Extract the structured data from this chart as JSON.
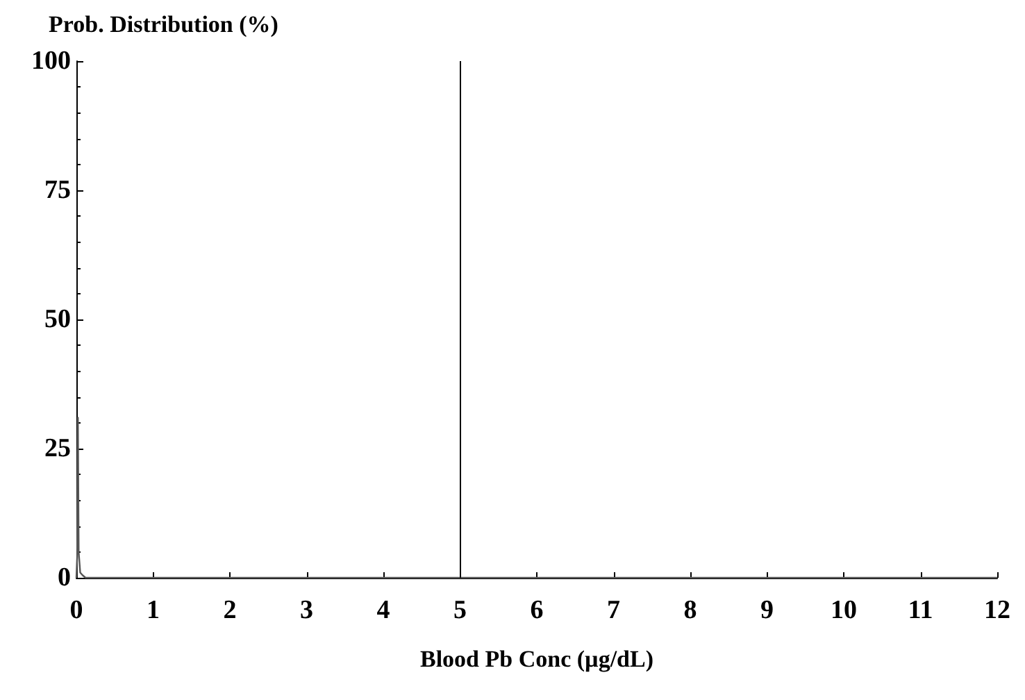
{
  "chart_data": {
    "type": "line",
    "ylabel": "Prob. Distribution (%)",
    "xlabel": "Blood Pb Conc (µg/dL)",
    "series": [
      {
        "color": "#555555",
        "x": [
          0,
          0.01,
          0.02,
          0.03,
          0.05,
          0.08,
          0.12,
          0.3,
          1,
          12
        ],
        "values": [
          0,
          4,
          31,
          5,
          1,
          0.5,
          0,
          0,
          0,
          0
        ]
      }
    ],
    "xlim": [
      0,
      12
    ],
    "xticks": [
      0,
      1,
      2,
      3,
      4,
      5,
      6,
      7,
      8,
      9,
      10,
      11,
      12
    ],
    "ylim": [
      0,
      100
    ],
    "yticks": [
      0,
      25,
      50,
      75,
      100
    ],
    "ref_lines": [
      {
        "axis": "x",
        "value": 5,
        "color": "#000000",
        "line_style": "solid"
      }
    ],
    "grid": false,
    "marker": "none",
    "line_style": "solid"
  }
}
